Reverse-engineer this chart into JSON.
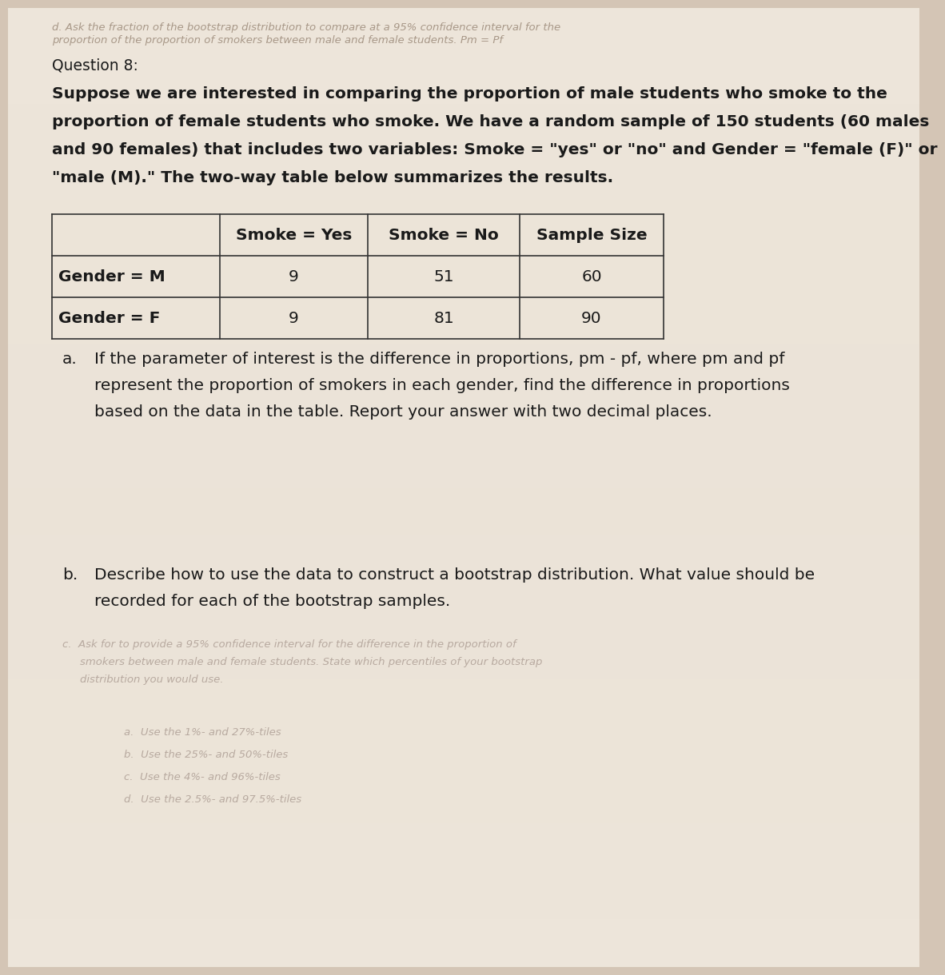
{
  "bg_color": "#d4c5b5",
  "page_color": "#ede5da",
  "text_color": "#1a1a1a",
  "faded_color": "#a89888",
  "faded_color2": "#b8aaa0",
  "question_label": "Question 8:",
  "intro_lines": [
    "Suppose we are interested in comparing the proportion of male students who smoke to the",
    "proportion of female students who smoke. We have a random sample of 150 students (60 males",
    "and 90 females) that includes two variables: Smoke = \"yes\" or \"no\" and Gender = \"female (F)\" or",
    "\"male (M).\" The two-way table below summarizes the results."
  ],
  "table_headers": [
    "",
    "Smoke = Yes",
    "Smoke = No",
    "Sample Size"
  ],
  "table_rows": [
    [
      "Gender = M",
      "9",
      "51",
      "60"
    ],
    [
      "Gender = F",
      "9",
      "81",
      "90"
    ]
  ],
  "part_a_label": "a.",
  "part_a_lines": [
    "If the parameter of interest is the difference in proportions, pm - pf, where pm and pf",
    "represent the proportion of smokers in each gender, find the difference in proportions",
    "based on the data in the table. Report your answer with two decimal places."
  ],
  "part_b_label": "b.",
  "part_b_lines": [
    "Describe how to use the data to construct a bootstrap distribution. What value should be",
    "recorded for each of the bootstrap samples."
  ],
  "faded_top_lines": [
    "d. Ask the fraction of the bootstrap distribution to compare at a 95% confidence interval for the",
    "proportion of the proportion of smokers between male and female students. Pm = Pf"
  ],
  "faded_c_lines": [
    "c.  Ask for to provide a 95% confidence interval for the difference in the proportion of",
    "smokers between male and female students. State which percentiles of your bootstrap",
    "distribution you would use."
  ],
  "faded_options": [
    "a.  Use the 1%- and 27%-tiles",
    "b.  Use the 25%- and 50%-tiles",
    "c.  Use the 4%- and 96%-tiles",
    "d.  Use the 2.5%- and 97.5%-tiles"
  ],
  "body_fontsize": 14.5,
  "small_fontsize": 9.5,
  "table_fontsize": 14.5,
  "question_fontsize": 13.5
}
